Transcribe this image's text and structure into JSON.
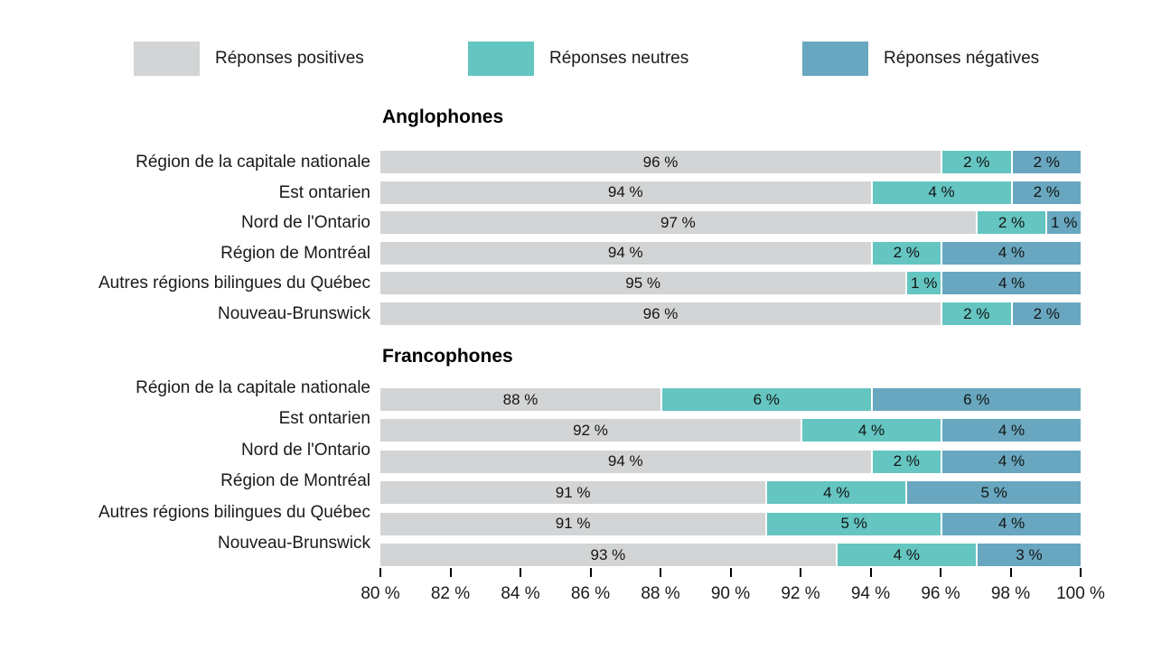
{
  "colors": {
    "positive": "#d2d4d5",
    "neutral": "#64c5c1",
    "negative": "#68a7bf",
    "text": "#1a1a1a"
  },
  "legend": {
    "items": [
      {
        "series": "positive",
        "label": "Réponses positives"
      },
      {
        "series": "neutral",
        "label": "Réponses neutres"
      },
      {
        "series": "negative",
        "label": "Réponses négatives"
      }
    ]
  },
  "chart_data": {
    "type": "bar",
    "subtype": "horizontal-stacked",
    "unit_suffix": " %",
    "series_names": [
      "Réponses positives",
      "Réponses neutres",
      "Réponses négatives"
    ],
    "axis": {
      "min": 80,
      "max": 100,
      "step": 2,
      "tick_labels": [
        "80 %",
        "82 %",
        "84 %",
        "86 %",
        "88 %",
        "90 %",
        "92 %",
        "94 %",
        "96 %",
        "98 %",
        "100 %"
      ]
    },
    "groups": [
      {
        "title": "Anglophones",
        "rows": [
          {
            "label": "Région de la capitale nationale",
            "values": {
              "positive": 96,
              "neutral": 2,
              "negative": 2
            }
          },
          {
            "label": "Est ontarien",
            "values": {
              "positive": 94,
              "neutral": 4,
              "negative": 2
            }
          },
          {
            "label": "Nord de l'Ontario",
            "values": {
              "positive": 97,
              "neutral": 2,
              "negative": 1
            }
          },
          {
            "label": "Région de Montréal",
            "values": {
              "positive": 94,
              "neutral": 2,
              "negative": 4
            }
          },
          {
            "label": "Autres régions bilingues du Québec",
            "values": {
              "positive": 95,
              "neutral": 1,
              "negative": 4
            }
          },
          {
            "label": "Nouveau-Brunswick",
            "values": {
              "positive": 96,
              "neutral": 2,
              "negative": 2
            }
          }
        ]
      },
      {
        "title": "Francophones",
        "rows": [
          {
            "label": "Région de la capitale nationale",
            "values": {
              "positive": 88,
              "neutral": 6,
              "negative": 6
            }
          },
          {
            "label": "Est ontarien",
            "values": {
              "positive": 92,
              "neutral": 4,
              "negative": 4
            }
          },
          {
            "label": "Nord de l'Ontario",
            "values": {
              "positive": 94,
              "neutral": 2,
              "negative": 4
            }
          },
          {
            "label": "Région de Montréal",
            "values": {
              "positive": 91,
              "neutral": 4,
              "negative": 5
            }
          },
          {
            "label": "Autres régions bilingues du Québec",
            "values": {
              "positive": 91,
              "neutral": 5,
              "negative": 4
            }
          },
          {
            "label": "Nouveau-Brunswick",
            "values": {
              "positive": 93,
              "neutral": 4,
              "negative": 3
            }
          }
        ]
      }
    ]
  }
}
